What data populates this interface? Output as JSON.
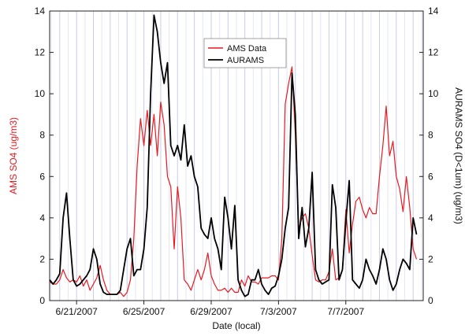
{
  "chart_data": {
    "type": "line",
    "xlabel": "Date (local)",
    "ylabel_left": "AMS SO4 (ug/m3)",
    "ylabel_right": "AURAMS SO4 (D<1um) (ug/m3)",
    "x_domain_day": [
      -0.6,
      21.6
    ],
    "ylim_left": [
      0,
      14
    ],
    "ylim_right": [
      0,
      14
    ],
    "y_ticks": [
      0,
      2,
      4,
      6,
      8,
      10,
      12,
      14
    ],
    "x_ticks": [
      {
        "day": 1,
        "label": "6/21/2007"
      },
      {
        "day": 5,
        "label": "6/25/2007"
      },
      {
        "day": 9,
        "label": "6/29/2007"
      },
      {
        "day": 13,
        "label": "7/3/2007"
      },
      {
        "day": 17,
        "label": "7/7/2007"
      }
    ],
    "legend_position": "top-center",
    "grid": "vertical",
    "series": [
      {
        "name": "AMS Data",
        "color": "#e8191f",
        "axis": "left",
        "x_day": [
          -0.6,
          -0.4,
          -0.2,
          0.0,
          0.2,
          0.4,
          0.6,
          0.8,
          1.0,
          1.2,
          1.4,
          1.6,
          1.8,
          2.0,
          2.2,
          2.4,
          2.6,
          2.8,
          3.0,
          3.2,
          3.4,
          3.6,
          3.8,
          4.0,
          4.2,
          4.4,
          4.6,
          4.8,
          5.0,
          5.2,
          5.4,
          5.6,
          5.8,
          6.0,
          6.2,
          6.4,
          6.6,
          6.8,
          7.0,
          7.2,
          7.4,
          7.6,
          7.8,
          8.0,
          8.2,
          8.4,
          8.6,
          8.8,
          9.0,
          9.2,
          9.4,
          9.6,
          9.8,
          10.0,
          10.2,
          10.4,
          10.6,
          10.8,
          11.0,
          11.2,
          11.4,
          11.6,
          11.8,
          12.0,
          12.2,
          12.4,
          12.6,
          12.8,
          13.0,
          13.2,
          13.4,
          13.6,
          13.8,
          14.0,
          14.2,
          14.4,
          14.6,
          14.8,
          15.0,
          15.2,
          15.4,
          15.6,
          15.8,
          16.0,
          16.2,
          16.4,
          16.6,
          16.8,
          17.0,
          17.2,
          17.4,
          17.6,
          17.8,
          18.0,
          18.2,
          18.4,
          18.6,
          18.8,
          19.0,
          19.2,
          19.4,
          19.6,
          19.8,
          20.0,
          20.2,
          20.4,
          20.6,
          20.8,
          21.0,
          21.2
        ],
        "y": [
          0.9,
          0.8,
          0.8,
          1.0,
          1.5,
          1.1,
          0.9,
          1.0,
          0.9,
          1.2,
          0.7,
          1.0,
          0.5,
          0.8,
          1.1,
          1.7,
          1.0,
          0.5,
          0.3,
          0.3,
          0.3,
          0.4,
          0.2,
          0.4,
          1.0,
          3.0,
          6.5,
          8.8,
          7.5,
          9.2,
          7.5,
          9.0,
          7.0,
          9.6,
          8.5,
          6.0,
          5.5,
          2.5,
          5.5,
          4.0,
          1.0,
          0.8,
          0.5,
          1.0,
          1.5,
          1.0,
          1.5,
          2.3,
          1.2,
          0.8,
          0.5,
          0.5,
          0.6,
          0.4,
          0.6,
          0.4,
          0.4,
          1.0,
          0.7,
          1.2,
          0.9,
          0.9,
          0.8,
          1.1,
          1.1,
          1.1,
          1.2,
          1.2,
          1.0,
          3.0,
          9.5,
          10.5,
          11.3,
          8.0,
          3.5,
          4.0,
          4.2,
          3.5,
          2.2,
          1.0,
          0.9,
          1.0,
          1.0,
          1.4,
          2.5,
          1.0,
          1.1,
          1.5,
          4.4,
          2.3,
          3.7,
          4.8,
          5.0,
          4.4,
          4.0,
          4.5,
          4.2,
          4.2,
          6.0,
          7.5,
          9.4,
          7.0,
          7.7,
          6.0,
          5.4,
          4.3,
          6.0,
          4.5,
          2.5,
          2.0
        ]
      },
      {
        "name": "AURAMS",
        "color": "#000000",
        "axis": "right",
        "x_day": [
          -0.6,
          -0.4,
          -0.2,
          0.0,
          0.2,
          0.4,
          0.6,
          0.8,
          1.0,
          1.2,
          1.4,
          1.6,
          1.8,
          2.0,
          2.2,
          2.4,
          2.6,
          2.8,
          3.0,
          3.2,
          3.4,
          3.6,
          3.8,
          4.0,
          4.2,
          4.4,
          4.6,
          4.8,
          5.0,
          5.2,
          5.4,
          5.6,
          5.8,
          6.0,
          6.2,
          6.4,
          6.6,
          6.8,
          7.0,
          7.2,
          7.4,
          7.6,
          7.8,
          8.0,
          8.2,
          8.4,
          8.6,
          8.8,
          9.0,
          9.2,
          9.4,
          9.6,
          9.8,
          10.0,
          10.2,
          10.4,
          10.6,
          10.8,
          11.0,
          11.2,
          11.4,
          11.6,
          11.8,
          12.0,
          12.2,
          12.4,
          12.6,
          12.8,
          13.0,
          13.2,
          13.4,
          13.6,
          13.8,
          14.0,
          14.2,
          14.4,
          14.6,
          14.8,
          15.0,
          15.2,
          15.4,
          15.6,
          15.8,
          16.0,
          16.2,
          16.4,
          16.6,
          16.8,
          17.0,
          17.2,
          17.4,
          17.6,
          17.8,
          18.0,
          18.2,
          18.4,
          18.6,
          18.8,
          19.0,
          19.2,
          19.4,
          19.6,
          19.8,
          20.0,
          20.2,
          20.4,
          20.6,
          20.8,
          21.0,
          21.2
        ],
        "y": [
          1.0,
          0.8,
          1.0,
          1.3,
          4.0,
          5.2,
          3.0,
          1.0,
          0.7,
          0.8,
          1.0,
          1.2,
          1.5,
          2.5,
          2.0,
          0.8,
          0.4,
          0.3,
          0.3,
          0.3,
          0.3,
          0.5,
          1.5,
          2.5,
          3.0,
          1.2,
          1.5,
          1.5,
          2.5,
          4.5,
          10.0,
          13.8,
          13.0,
          11.5,
          10.5,
          11.5,
          7.5,
          7.0,
          7.5,
          6.8,
          8.5,
          6.5,
          7.0,
          6.0,
          5.5,
          3.5,
          3.2,
          3.0,
          4.0,
          3.0,
          2.5,
          1.5,
          5.0,
          4.0,
          2.5,
          4.6,
          1.0,
          0.5,
          0.2,
          0.3,
          1.0,
          1.0,
          1.5,
          0.8,
          0.5,
          0.3,
          0.6,
          0.7,
          1.2,
          2.0,
          3.5,
          4.5,
          11.0,
          9.0,
          3.0,
          4.5,
          2.6,
          3.5,
          6.2,
          1.5,
          1.0,
          0.8,
          0.9,
          1.0,
          5.6,
          4.5,
          1.0,
          1.5,
          3.8,
          5.8,
          1.0,
          0.8,
          0.6,
          1.0,
          2.0,
          1.5,
          1.2,
          0.8,
          1.5,
          2.5,
          2.0,
          1.0,
          0.5,
          0.8,
          1.5,
          2.0,
          1.8,
          1.5,
          4.0,
          3.2
        ]
      }
    ]
  }
}
